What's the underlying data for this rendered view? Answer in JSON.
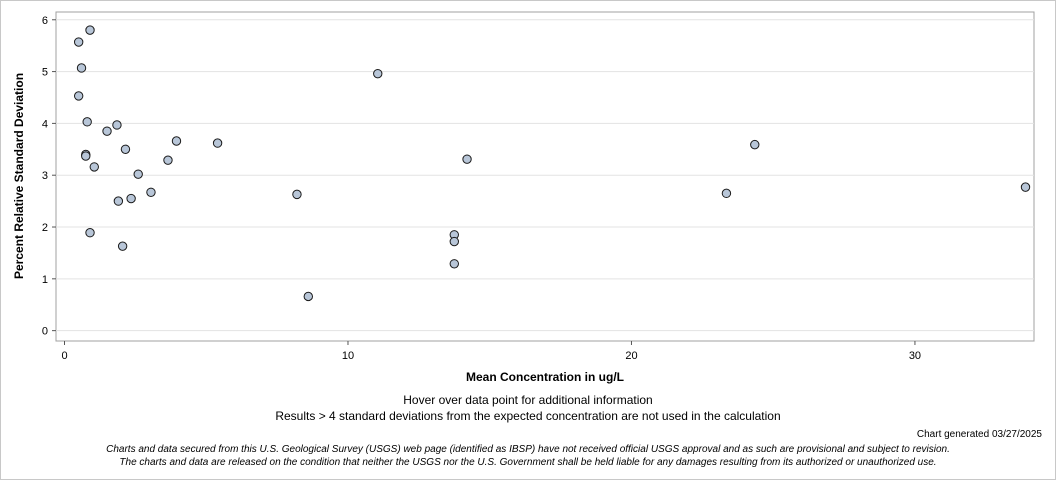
{
  "chart_data": {
    "type": "scatter",
    "title": "",
    "xlabel": "Mean Concentration in ug/L",
    "ylabel": "Percent Relative Standard Deviation",
    "xlim": [
      -0.3,
      34.2
    ],
    "ylim": [
      -0.2,
      6.15
    ],
    "x_ticks": [
      0,
      10,
      20,
      30
    ],
    "y_ticks": [
      0,
      1,
      2,
      3,
      4,
      5,
      6
    ],
    "grid": "horizontal",
    "marker_fill": "#b8c6d8",
    "marker_stroke": "#1a1a1a",
    "points": [
      {
        "x": 0.5,
        "y": 5.57
      },
      {
        "x": 0.9,
        "y": 5.8
      },
      {
        "x": 0.6,
        "y": 5.07
      },
      {
        "x": 0.5,
        "y": 4.53
      },
      {
        "x": 0.8,
        "y": 4.03
      },
      {
        "x": 0.75,
        "y": 3.4
      },
      {
        "x": 0.75,
        "y": 3.37
      },
      {
        "x": 1.05,
        "y": 3.16
      },
      {
        "x": 0.9,
        "y": 1.89
      },
      {
        "x": 1.5,
        "y": 3.85
      },
      {
        "x": 1.85,
        "y": 3.97
      },
      {
        "x": 2.15,
        "y": 3.5
      },
      {
        "x": 1.9,
        "y": 2.5
      },
      {
        "x": 2.35,
        "y": 2.55
      },
      {
        "x": 2.05,
        "y": 1.63
      },
      {
        "x": 2.6,
        "y": 3.02
      },
      {
        "x": 3.05,
        "y": 2.67
      },
      {
        "x": 3.65,
        "y": 3.29
      },
      {
        "x": 3.95,
        "y": 3.66
      },
      {
        "x": 5.4,
        "y": 3.62
      },
      {
        "x": 8.2,
        "y": 2.63
      },
      {
        "x": 8.6,
        "y": 0.66
      },
      {
        "x": 11.05,
        "y": 4.96
      },
      {
        "x": 14.2,
        "y": 3.31
      },
      {
        "x": 13.75,
        "y": 1.85
      },
      {
        "x": 13.75,
        "y": 1.72
      },
      {
        "x": 13.75,
        "y": 1.29
      },
      {
        "x": 23.35,
        "y": 2.65
      },
      {
        "x": 24.35,
        "y": 3.59
      },
      {
        "x": 33.9,
        "y": 2.77
      }
    ]
  },
  "notes": {
    "hover": "Hover over data point for additional information",
    "results": "Results > 4 standard deviations from the expected concentration are not used in the calculation",
    "generated": "Chart generated 03/27/2025",
    "disclaimer1": "Charts and data secured from this U.S. Geological Survey (USGS) web page (identified as IBSP) have not received official USGS approval and as such are provisional and subject to revision.",
    "disclaimer2": "The charts and data are released on the condition that neither the USGS nor the U.S. Government shall be held liable for any damages resulting from its authorized or unauthorized use."
  }
}
